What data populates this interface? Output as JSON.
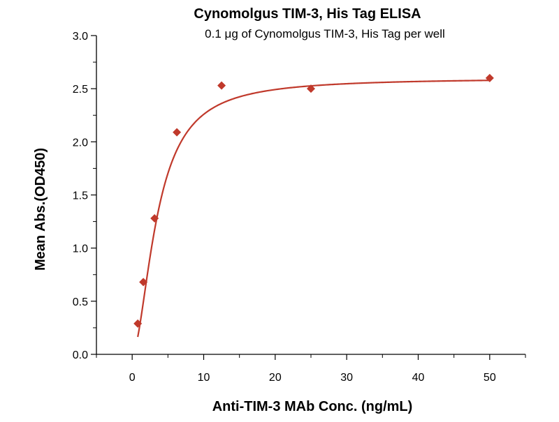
{
  "chart_data": {
    "type": "scatter",
    "title": "Cynomolgus TIM-3, His Tag ELISA",
    "subtitle": "0.1 μg of Cynomolgus TIM-3, His Tag per well",
    "xlabel": "Anti-TIM-3 MAb Conc. (ng/mL)",
    "ylabel": "Mean Abs.(OD450)",
    "xlim": [
      -5,
      55
    ],
    "ylim": [
      0,
      3.0
    ],
    "x_ticks": [
      0,
      10,
      20,
      30,
      40,
      50
    ],
    "y_ticks": [
      0.0,
      0.5,
      1.0,
      1.5,
      2.0,
      2.5,
      3.0
    ],
    "x_tick_labels": [
      "0",
      "10",
      "20",
      "30",
      "40",
      "50"
    ],
    "y_tick_labels": [
      "0.0",
      "0.5",
      "1.0",
      "1.5",
      "2.0",
      "2.5",
      "3.0"
    ],
    "grid": false,
    "colors": {
      "marker": "#c0392b",
      "curve": "#c0392b",
      "axis": "#000000"
    },
    "series": [
      {
        "x": [
          0.78,
          1.56,
          3.13,
          6.25,
          12.5,
          25,
          50
        ],
        "y": [
          0.29,
          0.68,
          1.28,
          2.09,
          2.53,
          2.5,
          2.6
        ]
      }
    ],
    "fit_curve": {
      "type": "four-parameter-logistic",
      "bottom": 0.0,
      "top": 2.6,
      "ec50": 3.5,
      "hill": 1.8
    }
  }
}
